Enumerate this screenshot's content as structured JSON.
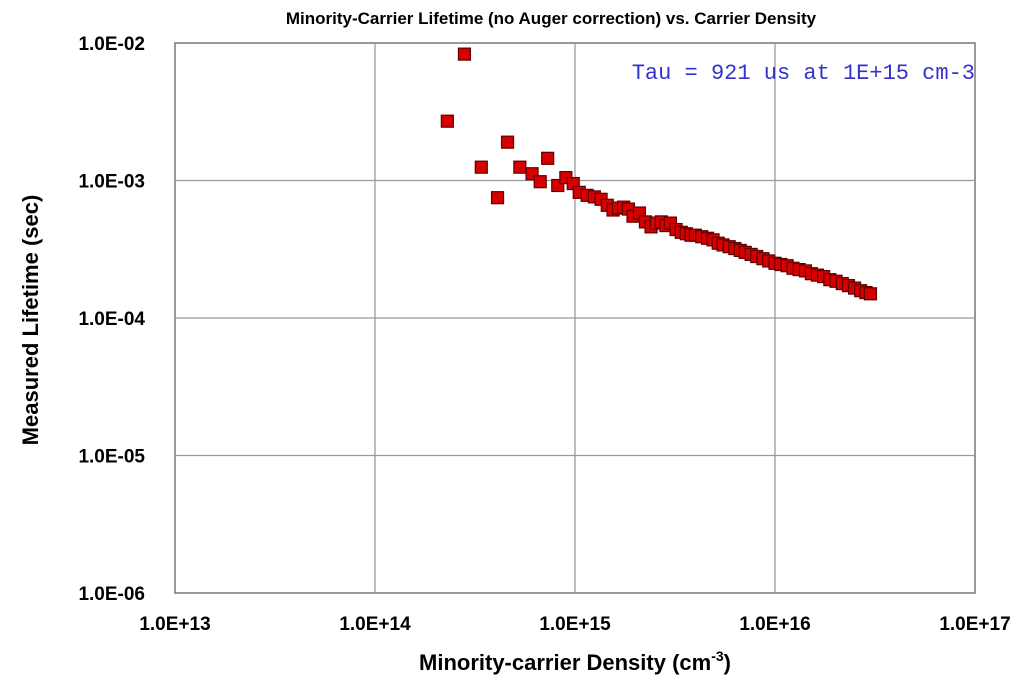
{
  "chart_data": {
    "type": "scatter",
    "title": "Minority-Carrier Lifetime (no Auger correction) vs. Carrier Density",
    "xlabel": "Minority-carrier Density (cm",
    "xlabel_sup": "-3",
    "xlabel_end": ")",
    "ylabel": "Measured Lifetime (sec)",
    "annotation": "Tau = 921 us at 1E+15 cm-3",
    "x_scale": "log",
    "y_scale": "log",
    "xlim": [
      10000000000000.0,
      1e+17
    ],
    "ylim": [
      1e-06,
      0.01
    ],
    "grid": true,
    "x_ticks": [
      "1.0E+13",
      "1.0E+14",
      "1.0E+15",
      "1.0E+16",
      "1.0E+17"
    ],
    "y_ticks": [
      "1.0E-02",
      "1.0E-03",
      "1.0E-04",
      "1.0E-05",
      "1.0E-06"
    ],
    "marker_color": "#d60000",
    "series": [
      {
        "points": [
          [
            230000000000000.0,
            0.0027
          ],
          [
            280000000000000.0,
            0.0083
          ],
          [
            340000000000000.0,
            0.00125
          ],
          [
            410000000000000.0,
            0.00075
          ],
          [
            460000000000000.0,
            0.0019
          ],
          [
            530000000000000.0,
            0.00125
          ],
          [
            610000000000000.0,
            0.00112
          ],
          [
            670000000000000.0,
            0.00098
          ],
          [
            730000000000000.0,
            0.00145
          ],
          [
            820000000000000.0,
            0.00092
          ],
          [
            900000000000000.0,
            0.00105
          ],
          [
            980000000000000.0,
            0.00095
          ],
          [
            1050000000000000.0,
            0.00082
          ],
          [
            1150000000000000.0,
            0.00078
          ],
          [
            1250000000000000.0,
            0.00076
          ],
          [
            1350000000000000.0,
            0.00073
          ],
          [
            1450000000000000.0,
            0.00066
          ],
          [
            1550000000000000.0,
            0.00061
          ],
          [
            1650000000000000.0,
            0.00063
          ],
          [
            1750000000000000.0,
            0.00064
          ],
          [
            1850000000000000.0,
            0.00062
          ],
          [
            1950000000000000.0,
            0.00055
          ],
          [
            2100000000000000.0,
            0.00058
          ],
          [
            2250000000000000.0,
            0.0005
          ],
          [
            2400000000000000.0,
            0.00046
          ],
          [
            2550000000000000.0,
            0.00049
          ],
          [
            2700000000000000.0,
            0.0005
          ],
          [
            2850000000000000.0,
            0.00047
          ],
          [
            3000000000000000.0,
            0.00049
          ],
          [
            3200000000000000.0,
            0.00044
          ],
          [
            3400000000000000.0,
            0.00042
          ],
          [
            3600000000000000.0,
            0.00041
          ],
          [
            3800000000000000.0,
            0.0004
          ],
          [
            4000000000000000.0,
            0.0004
          ],
          [
            4300000000000000.0,
            0.00039
          ],
          [
            4600000000000000.0,
            0.00038
          ],
          [
            4900000000000000.0,
            0.00037
          ],
          [
            5200000000000000.0,
            0.00035
          ],
          [
            5500000000000000.0,
            0.00034
          ],
          [
            5900000000000000.0,
            0.00033
          ],
          [
            6300000000000000.0,
            0.00032
          ],
          [
            6700000000000000.0,
            0.00031
          ],
          [
            7100000000000000.0,
            0.0003
          ],
          [
            7600000000000000.0,
            0.00029
          ],
          [
            8100000000000000.0,
            0.00028
          ],
          [
            8700000000000000.0,
            0.00027
          ],
          [
            9300000000000000.0,
            0.00026
          ],
          [
            1e+16,
            0.00025
          ],
          [
            1.07e+16,
            0.000245
          ],
          [
            1.15e+16,
            0.00024
          ],
          [
            1.23e+16,
            0.00023
          ],
          [
            1.32e+16,
            0.000225
          ],
          [
            1.42e+16,
            0.00022
          ],
          [
            1.52e+16,
            0.00021
          ],
          [
            1.63e+16,
            0.000205
          ],
          [
            1.75e+16,
            0.0002
          ],
          [
            1.88e+16,
            0.00019
          ],
          [
            2.02e+16,
            0.000185
          ],
          [
            2.17e+16,
            0.000178
          ],
          [
            2.33e+16,
            0.000172
          ],
          [
            2.5e+16,
            0.000165
          ],
          [
            2.68e+16,
            0.000158
          ],
          [
            2.85e+16,
            0.000153
          ],
          [
            3e+16,
            0.00015
          ]
        ]
      }
    ]
  }
}
